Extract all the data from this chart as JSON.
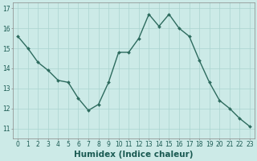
{
  "x": [
    0,
    1,
    2,
    3,
    4,
    5,
    6,
    7,
    8,
    9,
    10,
    11,
    12,
    13,
    14,
    15,
    16,
    17,
    18,
    19,
    20,
    21,
    22,
    23
  ],
  "y": [
    15.6,
    15.0,
    14.3,
    13.9,
    13.4,
    13.3,
    12.5,
    11.9,
    12.2,
    13.3,
    14.8,
    14.8,
    15.5,
    16.7,
    16.1,
    16.7,
    16.0,
    15.6,
    14.4,
    13.3,
    12.4,
    12.0,
    11.5,
    11.1
  ],
  "line_color": "#2d6b5e",
  "marker": "D",
  "marker_size": 2.0,
  "bg_color": "#cceae7",
  "plot_bg": "#cceae7",
  "grid_color": "#aad4d0",
  "xlabel": "Humidex (Indice chaleur)",
  "xlabel_fontsize": 7.5,
  "ylim": [
    10.5,
    17.3
  ],
  "yticks": [
    11,
    12,
    13,
    14,
    15,
    16,
    17
  ],
  "xticks": [
    0,
    1,
    2,
    3,
    4,
    5,
    6,
    7,
    8,
    9,
    10,
    11,
    12,
    13,
    14,
    15,
    16,
    17,
    18,
    19,
    20,
    21,
    22,
    23
  ],
  "tick_fontsize": 5.5,
  "line_width": 1.0
}
